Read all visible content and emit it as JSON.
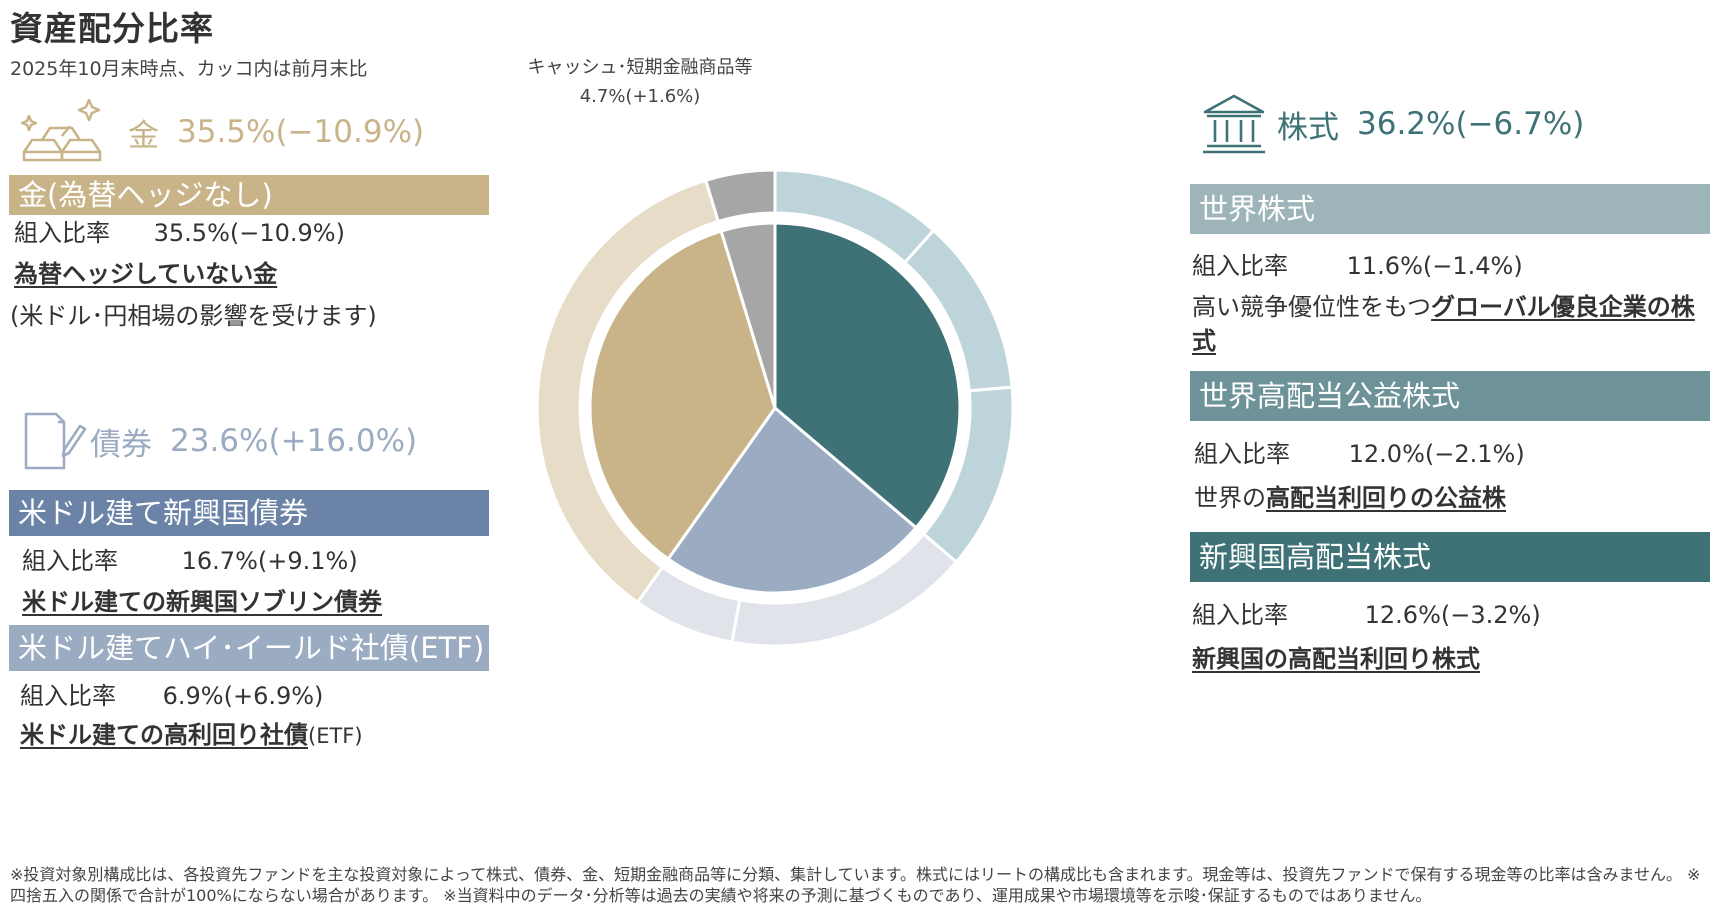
{
  "header": {
    "title": "資産配分比率",
    "subtitle": "2025年10月末時点、カッコ内は前月末比"
  },
  "colors": {
    "gold": "#C9B48A",
    "gold_light": "#E7DCC8",
    "bond_dark": "#6B83A6",
    "bond_mid": "#9AABC2",
    "bond_light": "#E0E4EA",
    "stock_world": "#9DB5B9",
    "stock_div": "#6D9399",
    "stock_em": "#3F7276",
    "stock_light": "#BDD5DA",
    "cash": "#A6A6A6",
    "inner_stock": "#3F7276",
    "inner_gold": "#C9B48A"
  },
  "gold": {
    "name": "金",
    "value": "35.5%(−10.9%)",
    "band": "金(為替ヘッジなし)",
    "ratio_label": "組入比率",
    "ratio_value": "35.5%(−10.9%)",
    "desc_link": "為替ヘッジしていない金",
    "desc_note": "(米ドル･円相場の影響を受けます)"
  },
  "bond": {
    "name": "債券",
    "value": "23.6%(+16.0%)",
    "funds": [
      {
        "band": "米ドル建て新興国債券",
        "ratio_label": "組入比率",
        "ratio_value": "16.7%(+9.1%)",
        "desc_link": "米ドル建ての新興国ソブリン債券",
        "desc_tail": ""
      },
      {
        "band": "米ドル建てハイ･イールド社債(ETF)",
        "ratio_label": "組入比率",
        "ratio_value": "6.9%(+6.9%)",
        "desc_link": "米ドル建ての高利回り社債",
        "desc_tail": "(ETF)"
      }
    ]
  },
  "stock": {
    "name": "株式",
    "value": "36.2%(−6.7%)",
    "funds": [
      {
        "band": "世界株式",
        "ratio_label": "組入比率",
        "ratio_value": "11.6%(−1.4%)",
        "desc_head": "高い競争優位性をもつ",
        "desc_link": "グローバル優良企業の株式"
      },
      {
        "band": "世界高配当公益株式",
        "ratio_label": "組入比率",
        "ratio_value": "12.0%(−2.1%)",
        "desc_head": "世界の",
        "desc_link": "高配当利回りの公益株"
      },
      {
        "band": "新興国高配当株式",
        "ratio_label": "組入比率",
        "ratio_value": "12.6%(−3.2%)",
        "desc_head": "",
        "desc_link": "新興国の高配当利回り株式"
      }
    ]
  },
  "cash": {
    "name": "キャッシュ･短期金融商品等",
    "value": "4.7%(+1.6%)"
  },
  "chart_data": {
    "type": "pie",
    "variant": "nested-donut",
    "inner": {
      "categories": [
        "株式",
        "債券",
        "金",
        "キャッシュ･短期金融商品等"
      ],
      "values": [
        36.2,
        23.6,
        35.5,
        4.7
      ]
    },
    "outer": {
      "categories": [
        "世界株式",
        "世界高配当公益株式",
        "新興国高配当株式",
        "米ドル建て新興国債券",
        "米ドル建てハイ･イールド社債(ETF)",
        "金(為替ヘッジなし)",
        "キャッシュ･短期金融商品等"
      ],
      "values": [
        11.6,
        12.0,
        12.6,
        16.7,
        6.9,
        35.5,
        4.7
      ]
    },
    "start_angle_deg": 0,
    "direction": "clockwise"
  },
  "footnote": "※投資対象別構成比は、各投資先ファンドを主な投資対象によって株式、債券、金、短期金融商品等に分類、集計しています。株式にはリートの構成比も含まれます。現金等は、投資先ファンドで保有する現金等の比率は含みません。 ※四捨五入の関係で合計が100%にならない場合があります。 ※当資料中のデータ･分析等は過去の実績や将来の予測に基づくものであり、運用成果や市場環境等を示唆･保証するものではありません。"
}
